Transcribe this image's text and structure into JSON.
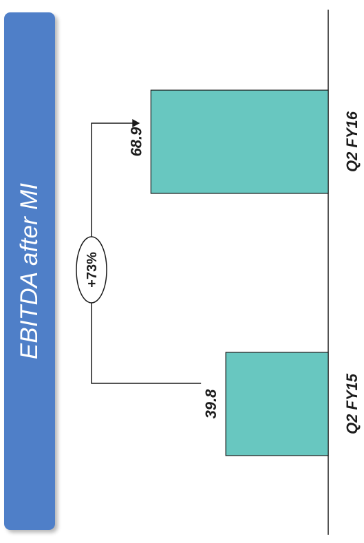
{
  "title": "EBITDA after MI",
  "chart_data": {
    "type": "bar",
    "orientation": "rotated-90",
    "categories": [
      "Q2 FY15",
      "Q2 FY16"
    ],
    "values": [
      39.8,
      68.9
    ],
    "value_labels": [
      "39.8",
      "68.9"
    ],
    "title": "EBITDA after MI",
    "xlabel": "",
    "ylabel": "",
    "ylim": [
      0,
      85
    ],
    "grid": false,
    "annotations": [
      {
        "text": "+73%",
        "from": "Q2 FY15",
        "to": "Q2 FY16"
      }
    ],
    "colors": {
      "bar": "#68c7c0",
      "bar_stroke": "#1a1a1a",
      "banner": "#4f7fc8"
    }
  }
}
